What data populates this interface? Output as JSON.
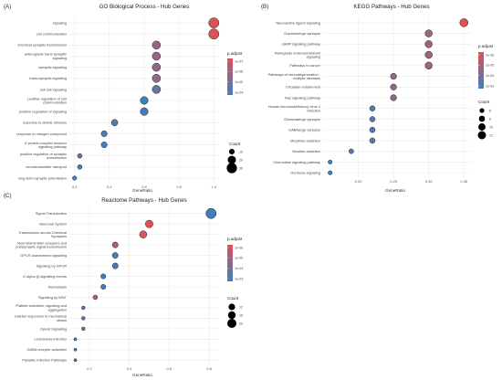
{
  "chart_data": [
    {
      "type": "scatter",
      "panel_label": "(A)",
      "title": "GO Biological Process - Hub Genes",
      "xlabel": "GeneRatio",
      "xticks": [
        0.2,
        0.4,
        0.6,
        0.8,
        1.0
      ],
      "tick_labels": [
        "0.2",
        "0.4",
        "0.6",
        "0.8",
        "1.0"
      ],
      "xlim": [
        0.17,
        1.03
      ],
      "grid": true,
      "categories": [
        "signaling",
        "cell communication",
        "chemical synaptic transmission",
        "anterograde trans-synaptic signaling",
        "synaptic signaling",
        "trans-synaptic signaling",
        "cell-cell signaling",
        "positive regulation of cell communication",
        "positive regulation of signaling",
        "response to abiotic stimulus",
        "response to nitrogen compound",
        "G protein-coupled receptor signaling pathway",
        "positive regulation of synaptic transmission",
        "neurotransmitter transport",
        "long-term synaptic potentiation"
      ],
      "points": [
        {
          "x": 1.0,
          "count": 30,
          "padj": 2.1e-08
        },
        {
          "x": 1.0,
          "count": 30,
          "padj": 2.1e-08
        },
        {
          "x": 0.67,
          "count": 20,
          "padj": 4e-08
        },
        {
          "x": 0.67,
          "count": 20,
          "padj": 4e-08
        },
        {
          "x": 0.67,
          "count": 20,
          "padj": 4.3e-08
        },
        {
          "x": 0.67,
          "count": 20,
          "padj": 4.3e-08
        },
        {
          "x": 0.67,
          "count": 20,
          "padj": 6.8e-08
        },
        {
          "x": 0.6,
          "count": 18,
          "padj": 9.5e-08
        },
        {
          "x": 0.6,
          "count": 18,
          "padj": 9.8e-08
        },
        {
          "x": 0.43,
          "count": 13,
          "padj": 8e-08
        },
        {
          "x": 0.37,
          "count": 11,
          "padj": 8.8e-08
        },
        {
          "x": 0.37,
          "count": 11,
          "padj": 9.5e-08
        },
        {
          "x": 0.23,
          "count": 7,
          "padj": 6.2e-08
        },
        {
          "x": 0.23,
          "count": 7,
          "padj": 9.5e-08
        },
        {
          "x": 0.2,
          "count": 6,
          "padj": 9.5e-08
        }
      ],
      "legend_color": {
        "title": "p.adjust",
        "labels": [
          "1e-07",
          "1e-06",
          "1e-05",
          "1e-04"
        ]
      },
      "legend_size": {
        "title": "Count",
        "labels": [
          "10",
          "20",
          "30"
        ],
        "values": [
          10,
          20,
          30
        ]
      }
    },
    {
      "type": "scatter",
      "panel_label": "(B)",
      "title": "KEGG Pathways - Hub Genes",
      "xlabel": "GeneRatio",
      "xticks": [
        0.2,
        0.25,
        0.3,
        0.35
      ],
      "tick_labels": [
        "0.20",
        "0.25",
        "0.30",
        "0.35"
      ],
      "xlim": [
        0.15,
        0.36
      ],
      "grid": true,
      "categories": [
        "Neuroactive ligand signaling",
        "Dopaminergic synapse",
        "cAMP signaling pathway",
        "Retrograde endocannabinoid signaling",
        "Pathways in cancer",
        "Pathways of neurodegeneration - multiple diseases",
        "Circadian entrainment",
        "Ras signaling pathway",
        "Human immunodeficiency virus 1 infection",
        "Glutamatergic synapse",
        "GABAergic synapse",
        "Morphine addiction",
        "Nicotine addiction",
        "Chemokine signaling pathway",
        "Hormone signaling"
      ],
      "points": [
        {
          "x": 0.35,
          "count": 12,
          "padj": 3e-07
        },
        {
          "x": 0.3,
          "count": 10,
          "padj": 8e-06
        },
        {
          "x": 0.3,
          "count": 10,
          "padj": 8e-06
        },
        {
          "x": 0.3,
          "count": 10,
          "padj": 8e-06
        },
        {
          "x": 0.3,
          "count": 10,
          "padj": 8e-06
        },
        {
          "x": 0.25,
          "count": 8,
          "padj": 1.6e-05
        },
        {
          "x": 0.25,
          "count": 8,
          "padj": 1.6e-05
        },
        {
          "x": 0.25,
          "count": 8,
          "padj": 1.8e-05
        },
        {
          "x": 0.22,
          "count": 7,
          "padj": 0.00025
        },
        {
          "x": 0.22,
          "count": 7,
          "padj": 0.00025
        },
        {
          "x": 0.22,
          "count": 7,
          "padj": 0.00025
        },
        {
          "x": 0.22,
          "count": 7,
          "padj": 0.00025
        },
        {
          "x": 0.19,
          "count": 6,
          "padj": 0.0003
        },
        {
          "x": 0.16,
          "count": 5,
          "padj": 0.001
        },
        {
          "x": 0.16,
          "count": 5,
          "padj": 0.001
        }
      ],
      "legend_color": {
        "title": "p.adjust",
        "labels": [
          "1e-06",
          "1e-05",
          "1e-04",
          "1e-03"
        ]
      },
      "legend_size": {
        "title": "Count",
        "labels": [
          "6",
          "8",
          "10",
          "12"
        ],
        "values": [
          6,
          8,
          10,
          12
        ]
      }
    },
    {
      "type": "scatter",
      "panel_label": "(C)",
      "title": "Reactome Pathways - Hub Genes",
      "xlabel": "GeneRatio",
      "xticks": [
        0.2,
        0.4,
        0.6,
        0.8
      ],
      "tick_labels": [
        "0.2",
        "0.4",
        "0.6",
        "0.8"
      ],
      "xlim": [
        0.1,
        0.85
      ],
      "grid": true,
      "categories": [
        "Signal Transduction",
        "Neuronal System",
        "Transmission across Chemical Synapses",
        "Neurotransmitter receptors and postsynaptic signal transmission",
        "GPCR downstream signalling",
        "Signaling by GPCR",
        "G alpha (i) signalling events",
        "Hemostasis",
        "Signaling by WNT",
        "Platelet activation, signaling and aggregation",
        "Cellular responses to mechanical stimuli",
        "Opioid Signalling",
        "Leishmania infection",
        "GABA receptor activation",
        "Parasitic Infection Pathways"
      ],
      "points": [
        {
          "x": 0.81,
          "count": 24,
          "padj": 0.0004
        },
        {
          "x": 0.5,
          "count": 15,
          "padj": 6e-08
        },
        {
          "x": 0.47,
          "count": 14,
          "padj": 6e-08
        },
        {
          "x": 0.33,
          "count": 10,
          "padj": 1e-06
        },
        {
          "x": 0.33,
          "count": 10,
          "padj": 0.0003
        },
        {
          "x": 0.33,
          "count": 10,
          "padj": 0.0004
        },
        {
          "x": 0.27,
          "count": 8,
          "padj": 0.0004
        },
        {
          "x": 0.27,
          "count": 8,
          "padj": 0.0005
        },
        {
          "x": 0.23,
          "count": 7,
          "padj": 4e-07
        },
        {
          "x": 0.17,
          "count": 5,
          "padj": 0.0002
        },
        {
          "x": 0.17,
          "count": 5,
          "padj": 3e-05
        },
        {
          "x": 0.17,
          "count": 5,
          "padj": 2e-05
        },
        {
          "x": 0.13,
          "count": 4,
          "padj": 0.0003
        },
        {
          "x": 0.13,
          "count": 4,
          "padj": 0.0003
        },
        {
          "x": 0.13,
          "count": 4,
          "padj": 0.0003
        }
      ],
      "legend_color": {
        "title": "p.adjust",
        "labels": [
          "1e-06",
          "1e-05",
          "1e-04",
          "1e-03"
        ]
      },
      "legend_size": {
        "title": "Count",
        "labels": [
          "12",
          "15",
          "20"
        ],
        "values": [
          12,
          15,
          20
        ]
      }
    }
  ],
  "colors": {
    "red": "#de5158",
    "blue": "#3f7fbc",
    "grid": "#ebebeb"
  }
}
